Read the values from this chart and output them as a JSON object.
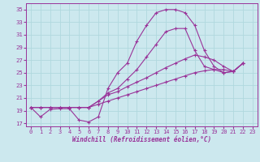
{
  "background_color": "#cce8ee",
  "grid_color": "#b0d8de",
  "line_color": "#993399",
  "xlabel": "Windchill (Refroidissement éolien,°C)",
  "xlim": [
    -0.5,
    23.5
  ],
  "ylim": [
    16.5,
    36.0
  ],
  "xticks": [
    0,
    1,
    2,
    3,
    4,
    5,
    6,
    7,
    8,
    9,
    10,
    11,
    12,
    13,
    14,
    15,
    16,
    17,
    18,
    19,
    20,
    21,
    22,
    23
  ],
  "yticks": [
    17,
    19,
    21,
    23,
    25,
    27,
    29,
    31,
    33,
    35
  ],
  "s1_x": [
    0,
    1,
    2,
    3,
    4,
    5,
    6,
    7,
    8,
    9,
    10,
    11,
    12,
    13,
    14,
    15,
    16,
    17,
    18,
    19,
    20,
    21,
    22
  ],
  "s1_y": [
    19.5,
    18.0,
    19.2,
    19.3,
    19.3,
    17.5,
    17.2,
    18.0,
    22.5,
    25.0,
    26.5,
    30.0,
    32.5,
    34.5,
    35.0,
    35.0,
    34.5,
    32.5,
    28.5,
    26.0,
    25.0,
    25.2,
    26.5
  ],
  "s2_x": [
    0,
    1,
    2,
    3,
    4,
    5,
    6,
    7,
    8,
    9,
    10,
    11,
    12,
    13,
    14,
    15,
    16,
    17,
    18,
    19,
    20,
    21,
    22
  ],
  "s2_y": [
    19.5,
    19.5,
    19.5,
    19.5,
    19.5,
    19.5,
    19.5,
    20.5,
    21.8,
    22.5,
    24.0,
    25.5,
    27.5,
    29.5,
    31.5,
    32.0,
    32.0,
    28.5,
    26.0,
    25.5,
    25.0,
    25.2,
    26.5
  ],
  "s3_x": [
    0,
    1,
    2,
    3,
    4,
    5,
    6,
    7,
    8,
    9,
    10,
    11,
    12,
    13,
    14,
    15,
    16,
    17,
    18,
    19,
    20,
    21,
    22
  ],
  "s3_y": [
    19.5,
    19.5,
    19.5,
    19.5,
    19.5,
    19.5,
    19.5,
    20.5,
    21.5,
    22.0,
    22.8,
    23.5,
    24.2,
    25.0,
    25.8,
    26.5,
    27.2,
    27.8,
    27.5,
    27.0,
    26.0,
    25.2,
    26.5
  ],
  "s4_x": [
    0,
    1,
    2,
    3,
    4,
    5,
    6,
    7,
    8,
    9,
    10,
    11,
    12,
    13,
    14,
    15,
    16,
    17,
    18,
    19,
    20,
    21,
    22
  ],
  "s4_y": [
    19.5,
    19.5,
    19.5,
    19.5,
    19.5,
    19.5,
    19.5,
    20.0,
    20.5,
    21.0,
    21.5,
    22.0,
    22.5,
    23.0,
    23.5,
    24.0,
    24.5,
    25.0,
    25.3,
    25.5,
    25.5,
    25.2,
    26.5
  ]
}
